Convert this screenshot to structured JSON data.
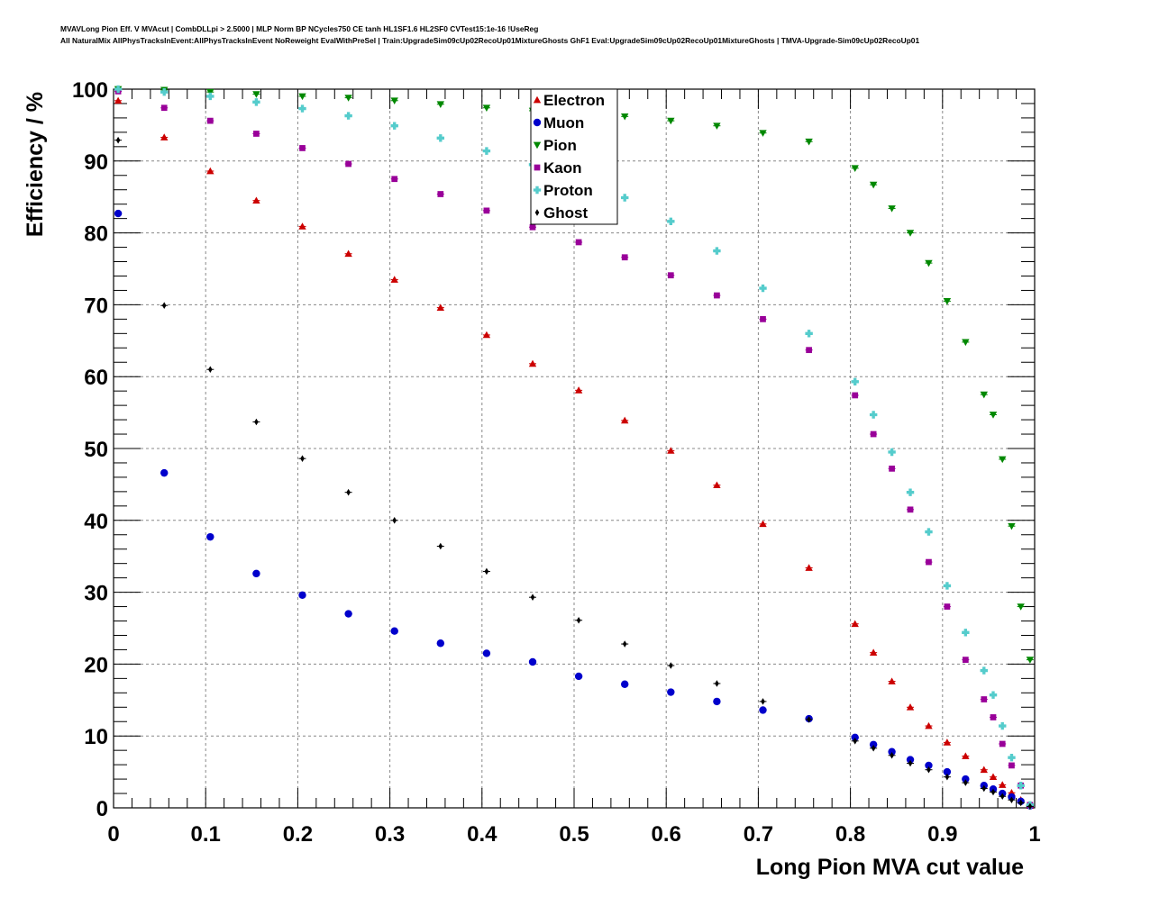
{
  "header": {
    "line1": "MVAVLong Pion Eff. V MVAcut | CombDLLpi > 2.5000 | MLP Norm BP NCycles750 CE tanh HL1SF1.6 HL2SF0 CVTest15:1e-16 !UseReg",
    "line2": "All NaturalMix AllPhysTracksInEvent:AllPhysTracksInEvent NoReweight EvalWithPreSel | Train:UpgradeSim09cUp02RecoUp01MixtureGhosts GhF1 Eval:UpgradeSim09cUp02RecoUp01MixtureGhosts | TMVA-Upgrade-Sim09cUp02RecoUp01"
  },
  "chart_data": {
    "type": "scatter",
    "title": "",
    "xlabel": "Long Pion MVA cut value",
    "ylabel": "Efficiency / %",
    "xlim": [
      0,
      1
    ],
    "ylim": [
      0,
      100
    ],
    "x_ticks": [
      "0",
      "0.1",
      "0.2",
      "0.3",
      "0.4",
      "0.5",
      "0.6",
      "0.7",
      "0.8",
      "0.9",
      "1"
    ],
    "y_ticks": [
      "0",
      "10",
      "20",
      "30",
      "40",
      "50",
      "60",
      "70",
      "80",
      "90",
      "100"
    ],
    "grid": true,
    "legend_position": "top-center",
    "x": [
      0.005,
      0.055,
      0.105,
      0.155,
      0.205,
      0.255,
      0.305,
      0.355,
      0.405,
      0.455,
      0.505,
      0.555,
      0.605,
      0.655,
      0.705,
      0.755,
      0.805,
      0.825,
      0.845,
      0.865,
      0.885,
      0.905,
      0.925,
      0.945,
      0.955,
      0.965,
      0.975,
      0.985,
      0.995
    ],
    "series": [
      {
        "name": "Electron",
        "marker": "triangle-up",
        "color": "#cc0000",
        "values": [
          98.4,
          93.3,
          88.6,
          84.5,
          80.9,
          77.1,
          73.5,
          69.6,
          65.8,
          61.8,
          58.1,
          53.9,
          49.7,
          44.9,
          39.5,
          33.4,
          25.6,
          21.6,
          17.6,
          14.0,
          11.4,
          9.1,
          7.2,
          5.3,
          4.3,
          3.2,
          2.1,
          1.1,
          0.3
        ]
      },
      {
        "name": "Muon",
        "marker": "circle",
        "color": "#0000cc",
        "values": [
          82.7,
          46.6,
          37.7,
          32.6,
          29.6,
          27.0,
          24.6,
          22.9,
          21.5,
          20.3,
          18.3,
          17.2,
          16.1,
          14.8,
          13.6,
          12.4,
          9.8,
          8.8,
          7.8,
          6.7,
          5.9,
          5.0,
          4.0,
          3.1,
          2.6,
          2.0,
          1.5,
          0.9,
          0.3
        ]
      },
      {
        "name": "Pion",
        "marker": "triangle-down",
        "color": "#008800",
        "values": [
          100.0,
          99.9,
          99.6,
          99.3,
          99.0,
          98.8,
          98.4,
          97.9,
          97.4,
          97.0,
          96.6,
          96.2,
          95.6,
          94.9,
          93.9,
          92.7,
          89.0,
          86.7,
          83.4,
          80.0,
          75.8,
          70.5,
          64.8,
          57.5,
          54.7,
          48.5,
          39.2,
          28.0,
          20.6
        ]
      },
      {
        "name": "Kaon",
        "marker": "square",
        "color": "#990099",
        "values": [
          99.7,
          97.4,
          95.6,
          93.8,
          91.8,
          89.6,
          87.5,
          85.4,
          83.1,
          80.8,
          78.7,
          76.6,
          74.1,
          71.3,
          68.0,
          63.7,
          57.4,
          52.0,
          47.2,
          41.5,
          34.2,
          28.0,
          20.6,
          15.1,
          12.6,
          8.9,
          5.9,
          3.1,
          0.4
        ]
      },
      {
        "name": "Proton",
        "marker": "cross",
        "color": "#55cccc",
        "values": [
          100.0,
          99.6,
          99.0,
          98.2,
          97.3,
          96.3,
          94.9,
          93.2,
          91.4,
          89.5,
          87.3,
          84.9,
          81.6,
          77.5,
          72.3,
          66.0,
          59.3,
          54.7,
          49.5,
          43.9,
          38.4,
          30.9,
          24.4,
          19.1,
          15.7,
          11.4,
          7.0,
          3.1,
          0.4
        ]
      },
      {
        "name": "Ghost",
        "marker": "diamond",
        "color": "#000000",
        "values": [
          92.9,
          69.9,
          61.0,
          53.7,
          48.6,
          43.9,
          40.0,
          36.4,
          32.9,
          29.3,
          26.1,
          22.8,
          19.8,
          17.3,
          14.8,
          12.3,
          9.3,
          8.3,
          7.3,
          6.2,
          5.3,
          4.3,
          3.5,
          2.7,
          2.2,
          1.6,
          1.1,
          0.7,
          0.2
        ]
      }
    ]
  }
}
